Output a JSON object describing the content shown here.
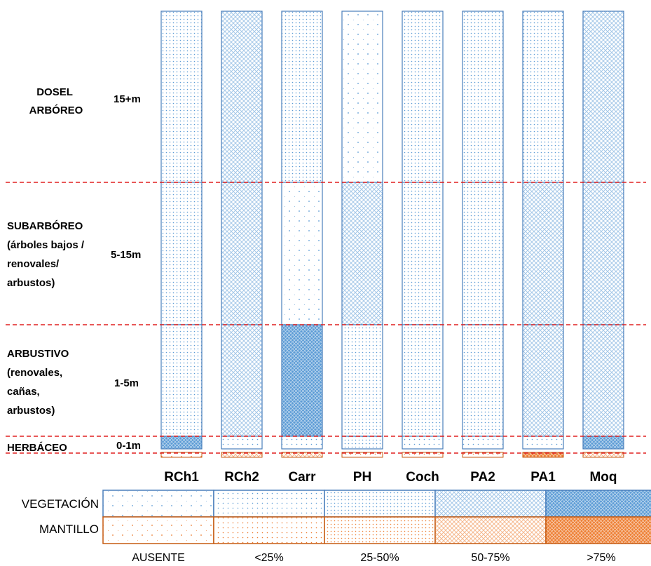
{
  "strata": [
    {
      "id": "dosel",
      "lines": [
        "DOSEL",
        "ARBÓREO"
      ],
      "height": "15+m"
    },
    {
      "id": "subarboreo",
      "lines": [
        "SUBARBÓREO",
        "(árboles bajos /",
        "renovales/",
        "arbustos)"
      ],
      "height": "5-15m"
    },
    {
      "id": "arbustivo",
      "lines": [
        "ARBUSTIVO",
        "(renovales,",
        "cañas,",
        "arbustos)"
      ],
      "height": "1-5m"
    },
    {
      "id": "herbaceo",
      "lines": [
        "HERBÁCEO"
      ],
      "height": "0-1m"
    }
  ],
  "sites": [
    "RCh1",
    "RCh2",
    "Carr",
    "PH",
    "Coch",
    "PA2",
    "PA1",
    "Moq"
  ],
  "cover_levels": [
    "AUSENTE",
    "<25%",
    "25-50%",
    "50-75%",
    ">75%"
  ],
  "vegetation_cover": {
    "RCh1": {
      "dosel": "25-50%",
      "subarboreo": "25-50%",
      "arbustivo": "25-50%",
      "herbaceo": ">75%",
      "mantillo": "AUSENTE"
    },
    "RCh2": {
      "dosel": "50-75%",
      "subarboreo": "50-75%",
      "arbustivo": "50-75%",
      "herbaceo": "<25%",
      "mantillo": "50-75%"
    },
    "Carr": {
      "dosel": "25-50%",
      "subarboreo": "AUSENTE",
      "arbustivo": ">75%",
      "herbaceo": "<25%",
      "mantillo": "50-75%"
    },
    "PH": {
      "dosel": "AUSENTE",
      "subarboreo": "50-75%",
      "arbustivo": "25-50%",
      "herbaceo": "25-50%",
      "mantillo": "<25%"
    },
    "Coch": {
      "dosel": "25-50%",
      "subarboreo": "25-50%",
      "arbustivo": "25-50%",
      "herbaceo": "<25%",
      "mantillo": "<25%"
    },
    "PA2": {
      "dosel": "25-50%",
      "subarboreo": "25-50%",
      "arbustivo": "25-50%",
      "herbaceo": "<25%",
      "mantillo": "<25%"
    },
    "PA1": {
      "dosel": "25-50%",
      "subarboreo": "50-75%",
      "arbustivo": "50-75%",
      "herbaceo": "<25%",
      "mantillo": ">75%"
    },
    "Moq": {
      "dosel": "50-75%",
      "subarboreo": "50-75%",
      "arbustivo": "50-75%",
      "herbaceo": ">75%",
      "mantillo": "50-75%"
    }
  },
  "legend": {
    "rows": [
      {
        "id": "vegetacion",
        "label": "VEGETACIÓN"
      },
      {
        "id": "mantillo",
        "label": "MANTILLO"
      }
    ]
  },
  "colors": {
    "vegetation_dot": "#5b9bd5",
    "vegetation_border": "#4a7ebb",
    "litter_dot": "#ed7d31",
    "litter_border": "#c55a11",
    "divider": "#e02020",
    "background": "#ffffff"
  }
}
